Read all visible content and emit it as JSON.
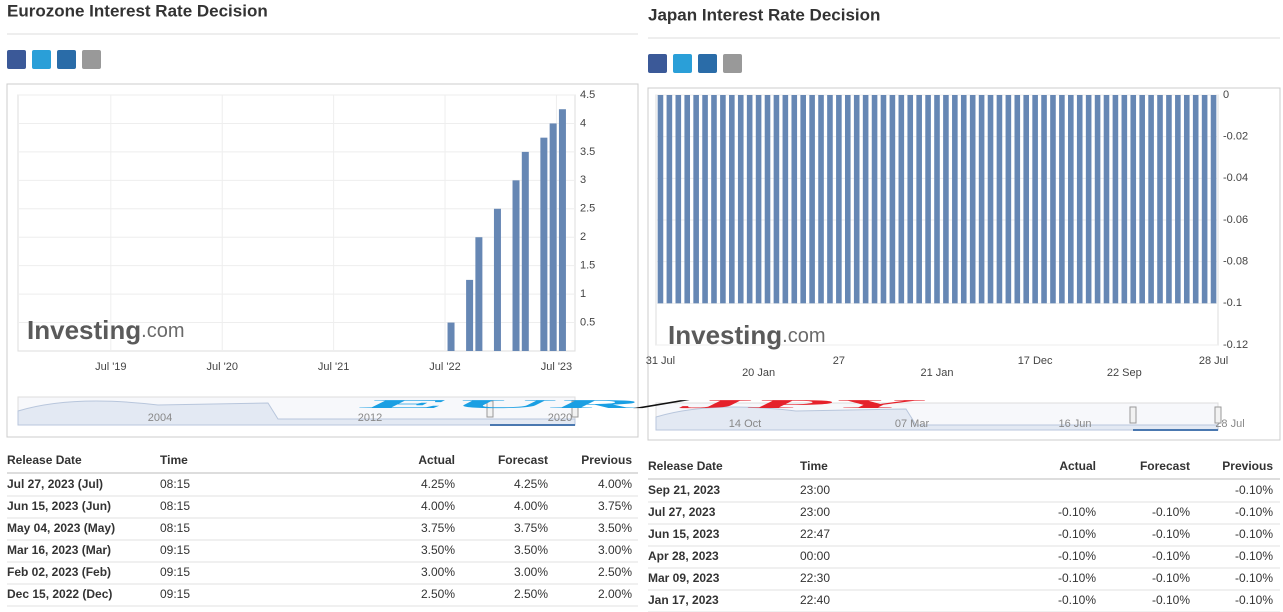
{
  "chart_data": [
    {
      "type": "bar",
      "title": "Eurozone Interest Rate Decision",
      "x": [
        "2022-07",
        "2022-09",
        "2022-10",
        "2022-12",
        "2023-02",
        "2023-03",
        "2023-05",
        "2023-06",
        "2023-07"
      ],
      "values": [
        0.5,
        1.25,
        2,
        2.5,
        3,
        3.5,
        3.75,
        4,
        4.25
      ],
      "color": "#6687b4",
      "xlim": [
        "2018-09",
        "2023-09"
      ],
      "xticks": [
        {
          "value": "2019-07",
          "label": "Jul '19"
        },
        {
          "value": "2020-07",
          "label": "Jul '20"
        },
        {
          "value": "2021-07",
          "label": "Jul '21"
        },
        {
          "value": "2022-07",
          "label": "Jul '22"
        },
        {
          "value": "2023-07",
          "label": "Jul '23"
        }
      ],
      "ylim": [
        0,
        4.5
      ],
      "yticks": [
        0.5,
        1,
        1.5,
        2,
        2.5,
        3,
        3.5,
        4,
        4.5
      ],
      "grid": true,
      "navigator_labels": [
        "2004",
        "2012",
        "2020"
      ]
    },
    {
      "type": "bar",
      "title": "Japan Interest Rate Decision",
      "categories": [
        "31 Jul",
        null,
        null,
        null,
        null,
        null,
        null,
        null,
        null,
        null,
        null,
        "20 Jan",
        null,
        null,
        null,
        null,
        null,
        null,
        null,
        null,
        "27",
        null,
        null,
        null,
        null,
        null,
        null,
        null,
        null,
        null,
        null,
        "21 Jan",
        null,
        null,
        null,
        null,
        null,
        null,
        null,
        null,
        null,
        null,
        "17 Dec",
        null,
        null,
        null,
        null,
        null,
        null,
        null,
        null,
        null,
        "22 Sep",
        null,
        null,
        null,
        null,
        null,
        null,
        null,
        null,
        null,
        "28 Jul"
      ],
      "values": [
        -0.1,
        -0.1,
        -0.1,
        -0.1,
        -0.1,
        -0.1,
        -0.1,
        -0.1,
        -0.1,
        -0.1,
        -0.1,
        -0.1,
        -0.1,
        -0.1,
        -0.1,
        -0.1,
        -0.1,
        -0.1,
        -0.1,
        -0.1,
        -0.1,
        -0.1,
        -0.1,
        -0.1,
        -0.1,
        -0.1,
        -0.1,
        -0.1,
        -0.1,
        -0.1,
        -0.1,
        -0.1,
        -0.1,
        -0.1,
        -0.1,
        -0.1,
        -0.1,
        -0.1,
        -0.1,
        -0.1,
        -0.1,
        -0.1,
        -0.1,
        -0.1,
        -0.1,
        -0.1,
        -0.1,
        -0.1,
        -0.1,
        -0.1,
        -0.1,
        -0.1,
        -0.1,
        -0.1,
        -0.1,
        -0.1,
        -0.1,
        -0.1,
        -0.1,
        -0.1,
        -0.1,
        -0.1,
        -0.1
      ],
      "color": "#6687b4",
      "ylim": [
        -0.12,
        0
      ],
      "yticks": [
        0,
        -0.02,
        -0.04,
        -0.06,
        -0.08,
        -0.1,
        -0.12
      ],
      "grid": true,
      "navigator_labels": [
        "14 Oct",
        "07 Mar",
        "16 Jun",
        "28 Jul"
      ]
    }
  ],
  "watermark": {
    "brand": "Investing",
    "suffix": ".com"
  },
  "tables": [
    {
      "columns": [
        "Release Date",
        "Time",
        "Actual",
        "Forecast",
        "Previous"
      ],
      "rows": [
        [
          "Jul 27, 2023 (Jul)",
          "08:15",
          "4.25%",
          "4.25%",
          "4.00%"
        ],
        [
          "Jun 15, 2023 (Jun)",
          "08:15",
          "4.00%",
          "4.00%",
          "3.75%"
        ],
        [
          "May 04, 2023 (May)",
          "08:15",
          "3.75%",
          "3.75%",
          "3.50%"
        ],
        [
          "Mar 16, 2023 (Mar)",
          "09:15",
          "3.50%",
          "3.50%",
          "3.00%"
        ],
        [
          "Feb 02, 2023 (Feb)",
          "09:15",
          "3.00%",
          "3.00%",
          "2.50%"
        ],
        [
          "Dec 15, 2022 (Dec)",
          "09:15",
          "2.50%",
          "2.50%",
          "2.00%"
        ]
      ]
    },
    {
      "columns": [
        "Release Date",
        "Time",
        "Actual",
        "Forecast",
        "Previous"
      ],
      "rows": [
        [
          "Sep 21, 2023",
          "23:00",
          null,
          null,
          "-0.10%"
        ],
        [
          "Jul 27, 2023",
          "23:00",
          "-0.10%",
          "-0.10%",
          "-0.10%"
        ],
        [
          "Jun 15, 2023",
          "22:47",
          "-0.10%",
          "-0.10%",
          "-0.10%"
        ],
        [
          "Apr 28, 2023",
          "00:00",
          "-0.10%",
          "-0.10%",
          "-0.10%"
        ],
        [
          "Mar 09, 2023",
          "22:30",
          "-0.10%",
          "-0.10%",
          "-0.10%"
        ],
        [
          "Jan 17, 2023",
          "22:40",
          "-0.10%",
          "-0.10%",
          "-0.10%"
        ]
      ]
    }
  ],
  "overlay": {
    "base": "EUR",
    "separator": "/",
    "quote": "JPY"
  }
}
